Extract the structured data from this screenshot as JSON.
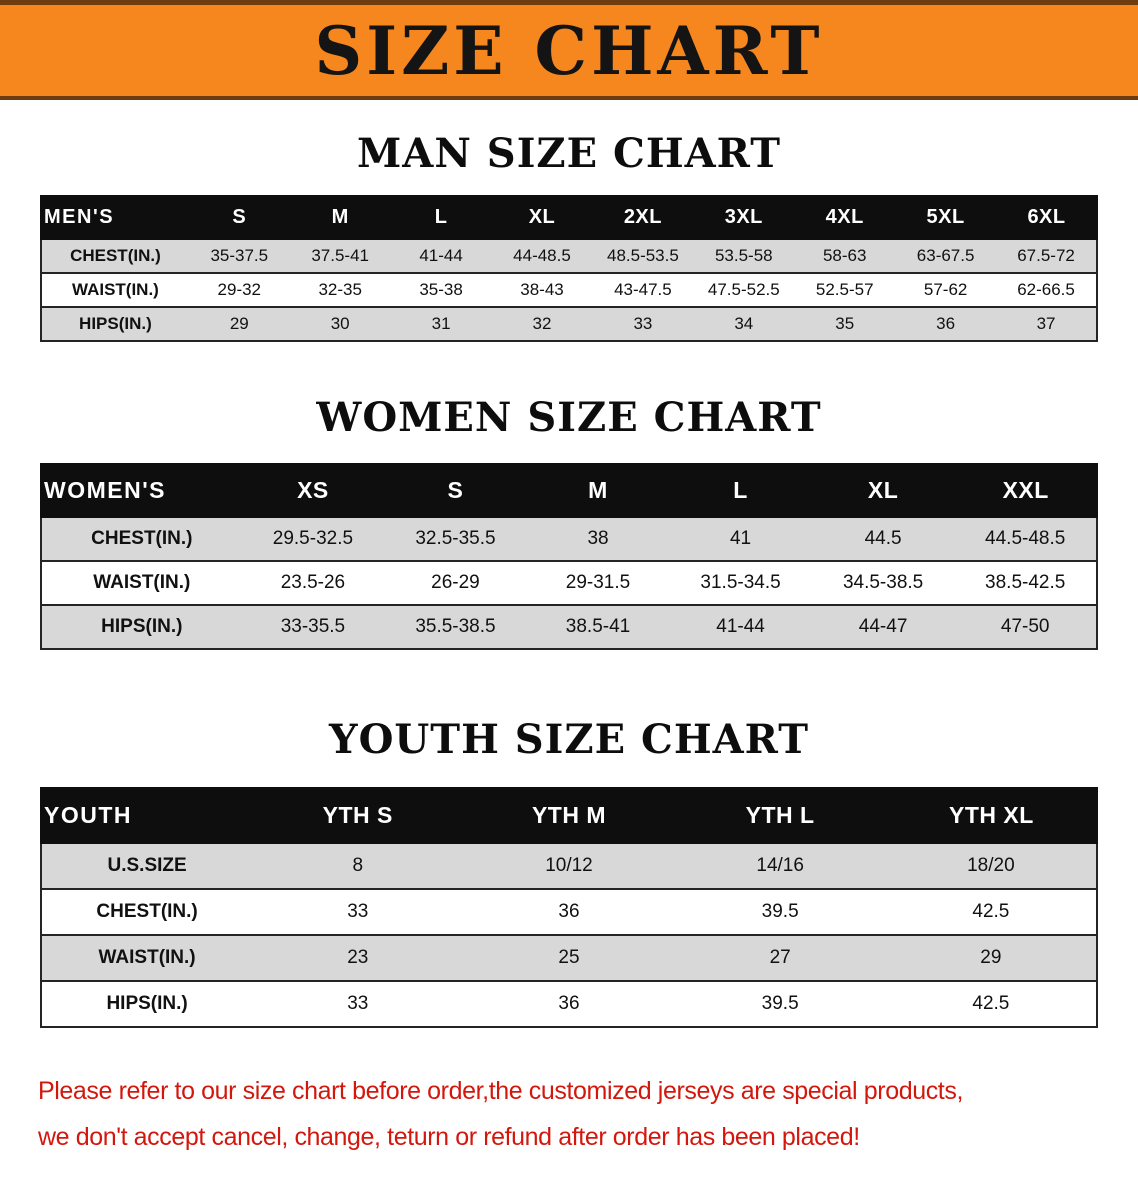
{
  "banner": {
    "title": "SIZE CHART"
  },
  "colors": {
    "banner_bg": "#f6871f",
    "banner_border": "#6e3c0f",
    "table_header_bg": "#0e0e0e",
    "table_header_text": "#ffffff",
    "row_alt_bg": "#d8d8d8",
    "notice_text": "#d3170c"
  },
  "sections": [
    {
      "heading": "MAN SIZE CHART",
      "table": {
        "header": [
          "MEN'S",
          "S",
          "M",
          "L",
          "XL",
          "2XL",
          "3XL",
          "4XL",
          "5XL",
          "6XL"
        ],
        "rows": [
          [
            "CHEST(IN.)",
            "35-37.5",
            "37.5-41",
            "41-44",
            "44-48.5",
            "48.5-53.5",
            "53.5-58",
            "58-63",
            "63-67.5",
            "67.5-72"
          ],
          [
            "WAIST(IN.)",
            "29-32",
            "32-35",
            "35-38",
            "38-43",
            "43-47.5",
            "47.5-52.5",
            "52.5-57",
            "57-62",
            "62-66.5"
          ],
          [
            "HIPS(IN.)",
            "29",
            "30",
            "31",
            "32",
            "33",
            "34",
            "35",
            "36",
            "37"
          ]
        ]
      }
    },
    {
      "heading": "WOMEN SIZE CHART",
      "table": {
        "header": [
          "WOMEN'S",
          "XS",
          "S",
          "M",
          "L",
          "XL",
          "XXL"
        ],
        "rows": [
          [
            "CHEST(IN.)",
            "29.5-32.5",
            "32.5-35.5",
            "38",
            "41",
            "44.5",
            "44.5-48.5"
          ],
          [
            "WAIST(IN.)",
            "23.5-26",
            "26-29",
            "29-31.5",
            "31.5-34.5",
            "34.5-38.5",
            "38.5-42.5"
          ],
          [
            "HIPS(IN.)",
            "33-35.5",
            "35.5-38.5",
            "38.5-41",
            "41-44",
            "44-47",
            "47-50"
          ]
        ]
      }
    },
    {
      "heading": "YOUTH SIZE CHART",
      "table": {
        "header": [
          "YOUTH",
          "YTH S",
          "YTH M",
          "YTH L",
          "YTH XL"
        ],
        "rows": [
          [
            "U.S.SIZE",
            "8",
            "10/12",
            "14/16",
            "18/20"
          ],
          [
            "CHEST(IN.)",
            "33",
            "36",
            "39.5",
            "42.5"
          ],
          [
            "WAIST(IN.)",
            "23",
            "25",
            "27",
            "29"
          ],
          [
            "HIPS(IN.)",
            "33",
            "36",
            "39.5",
            "42.5"
          ]
        ]
      }
    }
  ],
  "footer": {
    "lines": [
      "Please refer to our size chart before order,the customized jerseys are special products,",
      "we don't accept cancel, change, teturn or refund after order has been placed!"
    ]
  }
}
